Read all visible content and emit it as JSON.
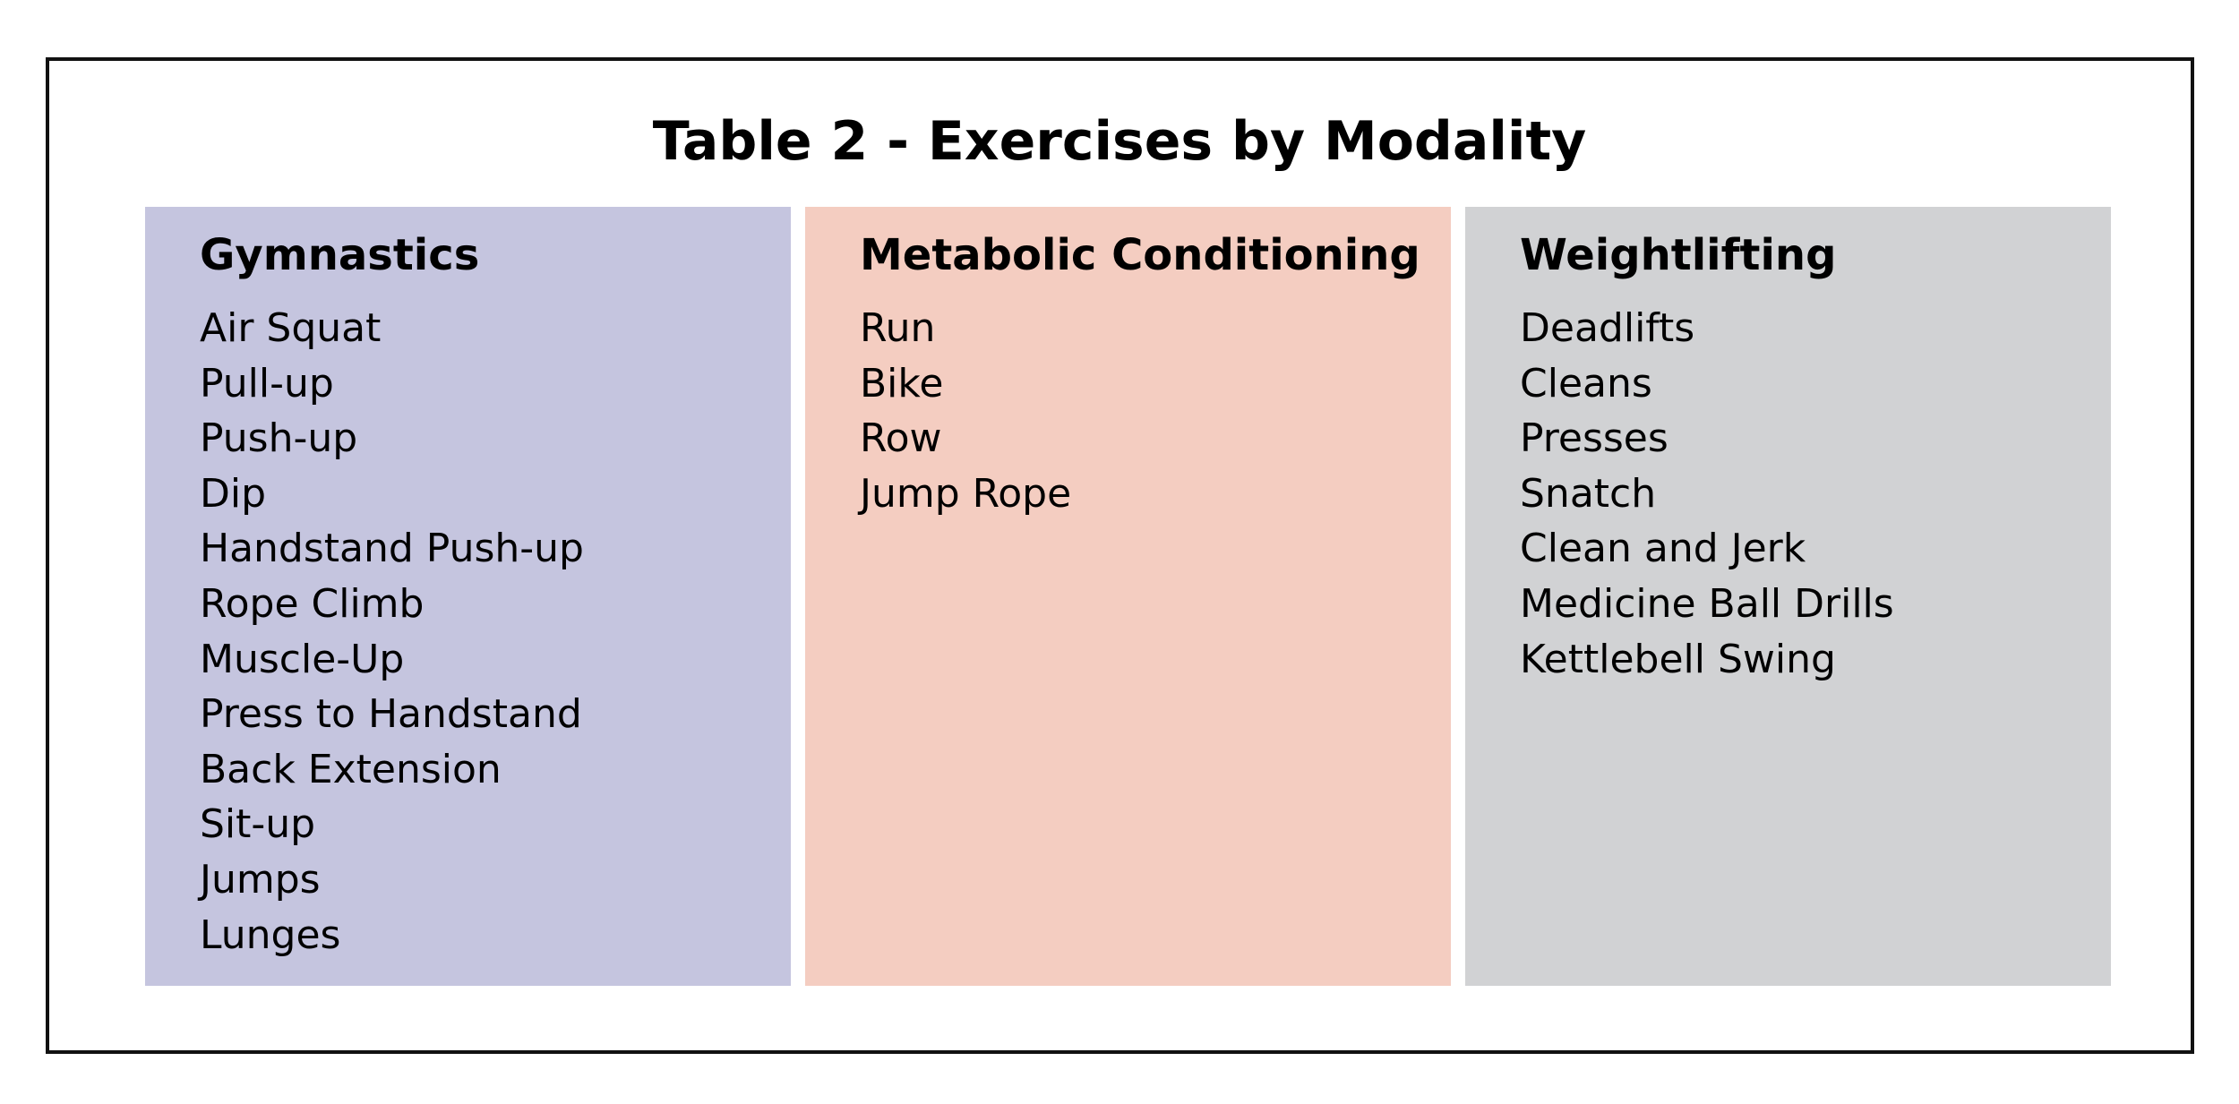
{
  "title": "Table 2 - Exercises by Modality",
  "colors": {
    "gymnastics_bg": "#c5c5df",
    "metcon_bg": "#f4cdc1",
    "weightlifting_bg": "#d1d2d4"
  },
  "columns": [
    {
      "heading": "Gymnastics",
      "items": [
        "Air Squat",
        "Pull-up",
        "Push-up",
        "Dip",
        "Handstand Push-up",
        "Rope Climb",
        "Muscle-Up",
        "Press to Handstand",
        "Back Extension",
        "Sit-up",
        "Jumps",
        "Lunges"
      ]
    },
    {
      "heading": "Metabolic Conditioning",
      "items": [
        "Run",
        "Bike",
        "Row",
        "Jump Rope"
      ]
    },
    {
      "heading": "Weightlifting",
      "items": [
        "Deadlifts",
        "Cleans",
        "Presses",
        "Snatch",
        "Clean and Jerk",
        "Medicine Ball Drills",
        "Kettlebell Swing"
      ]
    }
  ]
}
